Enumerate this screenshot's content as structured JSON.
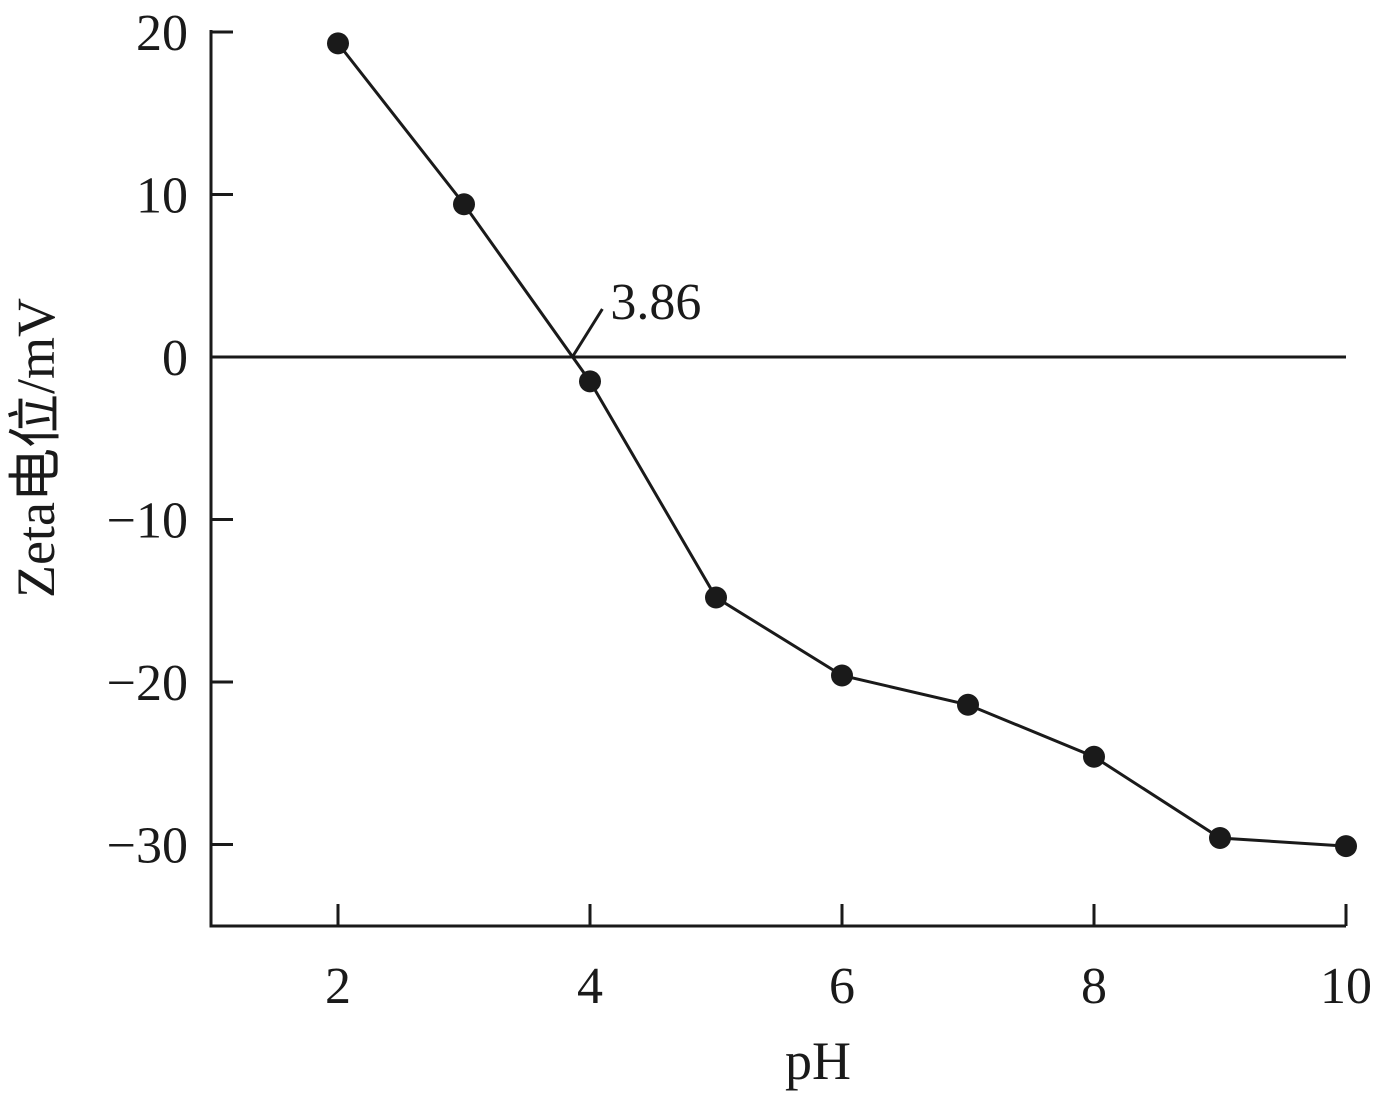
{
  "chart_data": {
    "type": "line",
    "xlabel": "pH",
    "ylabel": "Zeta电位/mV",
    "xlim": [
      1,
      10
    ],
    "ylim": [
      -35,
      20
    ],
    "x_ticks": [
      2,
      4,
      6,
      8,
      10
    ],
    "y_ticks": [
      20,
      10,
      0,
      -10,
      -20,
      -30
    ],
    "y_tick_labels": [
      "20",
      "10",
      "0",
      "−10",
      "−20",
      "−30"
    ],
    "grid": false,
    "zero_line": true,
    "series": [
      {
        "x": [
          2,
          3,
          4,
          5,
          6,
          7,
          8,
          9,
          10
        ],
        "y": [
          19.3,
          9.4,
          -1.5,
          -14.8,
          -19.6,
          -21.4,
          -24.6,
          -29.6,
          -30.1
        ],
        "marker": "filled-circle",
        "color": "#1a1a1a"
      }
    ],
    "annotation": {
      "text": "3.86",
      "x": 3.86,
      "y": 0
    }
  }
}
